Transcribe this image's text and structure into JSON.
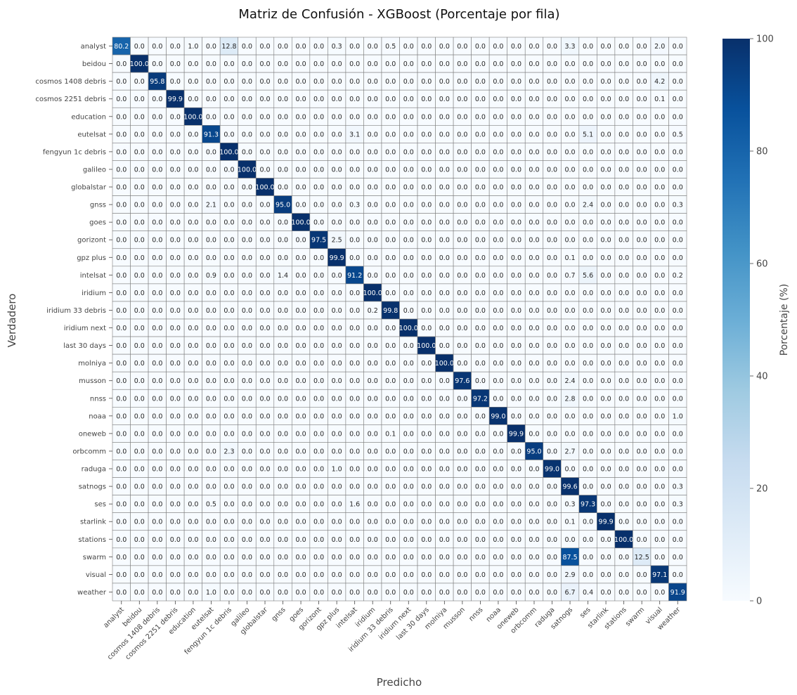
{
  "chart_data": {
    "type": "heatmap",
    "title": "Matriz de Confusión - XGBoost (Porcentaje por fila)",
    "xlabel": "Predicho",
    "ylabel": "Verdadero",
    "colorbar": {
      "label": "Porcentaje (%)",
      "range": [
        0,
        100
      ],
      "ticks": [
        "0",
        "20",
        "40",
        "60",
        "80",
        "100"
      ],
      "colormap": "Blues",
      "color_low": "#f7fbff",
      "color_high": "#08306b"
    },
    "value_format": "one decimal",
    "grid": true,
    "cell_border_color": "#7f7f7f",
    "labels": [
      "analyst",
      "beidou",
      "cosmos 1408 debris",
      "cosmos 2251 debris",
      "education",
      "eutelsat",
      "fengyun 1c debris",
      "galileo",
      "globalstar",
      "gnss",
      "goes",
      "gorizont",
      "gpz plus",
      "intelsat",
      "iridium",
      "iridium 33 debris",
      "iridium next",
      "last 30 days",
      "molniya",
      "musson",
      "nnss",
      "noaa",
      "oneweb",
      "orbcomm",
      "raduga",
      "satnogs",
      "ses",
      "starlink",
      "stations",
      "swarm",
      "visual",
      "weather"
    ],
    "nonzero_cells": [
      {
        "row": "analyst",
        "col": "analyst",
        "value": 80.2
      },
      {
        "row": "analyst",
        "col": "education",
        "value": 1.0
      },
      {
        "row": "analyst",
        "col": "fengyun 1c debris",
        "value": 12.8
      },
      {
        "row": "analyst",
        "col": "gpz plus",
        "value": 0.3
      },
      {
        "row": "analyst",
        "col": "iridium 33 debris",
        "value": 0.5
      },
      {
        "row": "analyst",
        "col": "satnogs",
        "value": 3.3
      },
      {
        "row": "analyst",
        "col": "visual",
        "value": 2.0
      },
      {
        "row": "beidou",
        "col": "beidou",
        "value": 100.0
      },
      {
        "row": "cosmos 1408 debris",
        "col": "cosmos 1408 debris",
        "value": 95.8
      },
      {
        "row": "cosmos 1408 debris",
        "col": "visual",
        "value": 4.2
      },
      {
        "row": "cosmos 2251 debris",
        "col": "cosmos 2251 debris",
        "value": 99.9
      },
      {
        "row": "cosmos 2251 debris",
        "col": "visual",
        "value": 0.1
      },
      {
        "row": "education",
        "col": "education",
        "value": 100.0
      },
      {
        "row": "eutelsat",
        "col": "eutelsat",
        "value": 91.3
      },
      {
        "row": "eutelsat",
        "col": "intelsat",
        "value": 3.1
      },
      {
        "row": "eutelsat",
        "col": "ses",
        "value": 5.1
      },
      {
        "row": "eutelsat",
        "col": "weather",
        "value": 0.5
      },
      {
        "row": "fengyun 1c debris",
        "col": "fengyun 1c debris",
        "value": 100.0
      },
      {
        "row": "galileo",
        "col": "galileo",
        "value": 100.0
      },
      {
        "row": "globalstar",
        "col": "globalstar",
        "value": 100.0
      },
      {
        "row": "gnss",
        "col": "eutelsat",
        "value": 2.1
      },
      {
        "row": "gnss",
        "col": "gnss",
        "value": 95.0
      },
      {
        "row": "gnss",
        "col": "intelsat",
        "value": 0.3
      },
      {
        "row": "gnss",
        "col": "ses",
        "value": 2.4
      },
      {
        "row": "gnss",
        "col": "weather",
        "value": 0.3
      },
      {
        "row": "goes",
        "col": "goes",
        "value": 100.0
      },
      {
        "row": "gorizont",
        "col": "gorizont",
        "value": 97.5
      },
      {
        "row": "gorizont",
        "col": "gpz plus",
        "value": 2.5
      },
      {
        "row": "gpz plus",
        "col": "gpz plus",
        "value": 99.9
      },
      {
        "row": "gpz plus",
        "col": "satnogs",
        "value": 0.1
      },
      {
        "row": "intelsat",
        "col": "eutelsat",
        "value": 0.9
      },
      {
        "row": "intelsat",
        "col": "gnss",
        "value": 1.4
      },
      {
        "row": "intelsat",
        "col": "intelsat",
        "value": 91.2
      },
      {
        "row": "intelsat",
        "col": "satnogs",
        "value": 0.7
      },
      {
        "row": "intelsat",
        "col": "ses",
        "value": 5.6
      },
      {
        "row": "intelsat",
        "col": "weather",
        "value": 0.2
      },
      {
        "row": "iridium",
        "col": "iridium",
        "value": 100.0
      },
      {
        "row": "iridium 33 debris",
        "col": "iridium",
        "value": 0.2
      },
      {
        "row": "iridium 33 debris",
        "col": "iridium 33 debris",
        "value": 99.8
      },
      {
        "row": "iridium next",
        "col": "iridium next",
        "value": 100.0
      },
      {
        "row": "last 30 days",
        "col": "last 30 days",
        "value": 100.0
      },
      {
        "row": "molniya",
        "col": "molniya",
        "value": 100.0
      },
      {
        "row": "musson",
        "col": "musson",
        "value": 97.6
      },
      {
        "row": "musson",
        "col": "satnogs",
        "value": 2.4
      },
      {
        "row": "nnss",
        "col": "nnss",
        "value": 97.2
      },
      {
        "row": "nnss",
        "col": "satnogs",
        "value": 2.8
      },
      {
        "row": "noaa",
        "col": "noaa",
        "value": 99.0
      },
      {
        "row": "noaa",
        "col": "weather",
        "value": 1.0
      },
      {
        "row": "oneweb",
        "col": "iridium 33 debris",
        "value": 0.1
      },
      {
        "row": "oneweb",
        "col": "oneweb",
        "value": 99.9
      },
      {
        "row": "orbcomm",
        "col": "fengyun 1c debris",
        "value": 2.3
      },
      {
        "row": "orbcomm",
        "col": "orbcomm",
        "value": 95.0
      },
      {
        "row": "orbcomm",
        "col": "satnogs",
        "value": 2.7
      },
      {
        "row": "raduga",
        "col": "gpz plus",
        "value": 1.0
      },
      {
        "row": "raduga",
        "col": "raduga",
        "value": 99.0
      },
      {
        "row": "satnogs",
        "col": "satnogs",
        "value": 99.6
      },
      {
        "row": "satnogs",
        "col": "weather",
        "value": 0.3
      },
      {
        "row": "ses",
        "col": "eutelsat",
        "value": 0.5
      },
      {
        "row": "ses",
        "col": "intelsat",
        "value": 1.6
      },
      {
        "row": "ses",
        "col": "satnogs",
        "value": 0.3
      },
      {
        "row": "ses",
        "col": "ses",
        "value": 97.3
      },
      {
        "row": "ses",
        "col": "weather",
        "value": 0.3
      },
      {
        "row": "starlink",
        "col": "satnogs",
        "value": 0.1
      },
      {
        "row": "starlink",
        "col": "starlink",
        "value": 99.9
      },
      {
        "row": "stations",
        "col": "stations",
        "value": 100.0
      },
      {
        "row": "swarm",
        "col": "satnogs",
        "value": 87.5
      },
      {
        "row": "swarm",
        "col": "swarm",
        "value": 12.5
      },
      {
        "row": "visual",
        "col": "satnogs",
        "value": 2.9
      },
      {
        "row": "visual",
        "col": "visual",
        "value": 97.1
      },
      {
        "row": "weather",
        "col": "eutelsat",
        "value": 1.0
      },
      {
        "row": "weather",
        "col": "satnogs",
        "value": 6.7
      },
      {
        "row": "weather",
        "col": "ses",
        "value": 0.4
      },
      {
        "row": "weather",
        "col": "weather",
        "value": 91.9
      }
    ]
  }
}
